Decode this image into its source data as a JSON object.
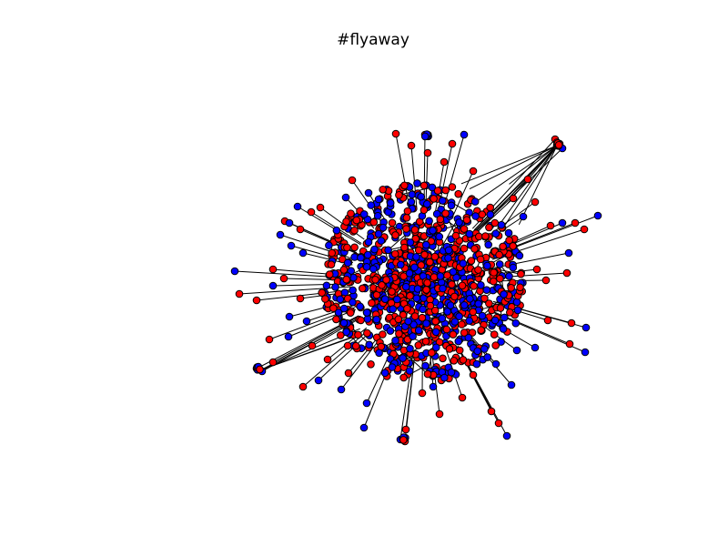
{
  "title": "#flyaway",
  "graph": {
    "node_fill_colors": [
      "#ff0000",
      "#0000ff"
    ],
    "node_edge_color": "#000000",
    "edge_color": "#000000"
  }
}
